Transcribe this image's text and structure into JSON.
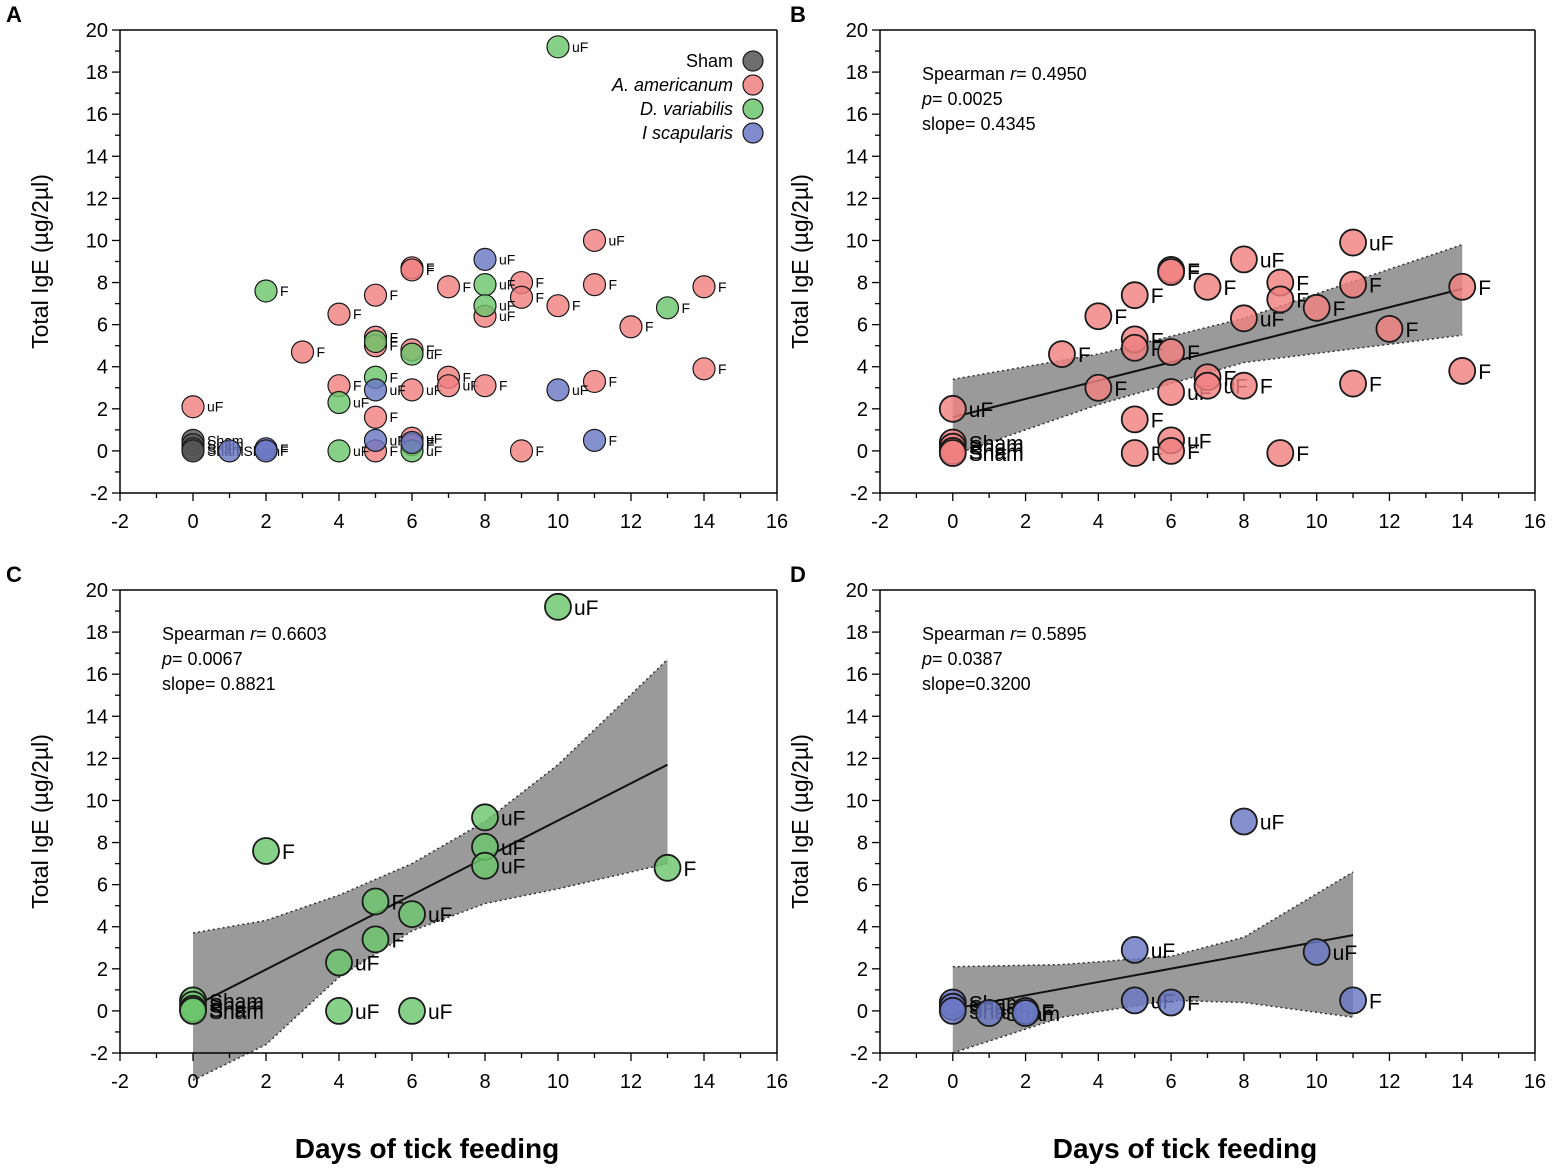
{
  "figure": {
    "xlabel": "Days of tick feeding",
    "ylabel": "Total IgE (µg/2µl)"
  },
  "colors": {
    "sham": "#555555",
    "americanum": "#f08080",
    "variabilis": "#6cc66c",
    "scapularis": "#6a78c4",
    "band": "#8c8c8c"
  },
  "chart_data": [
    {
      "panel": "A",
      "type": "scatter",
      "xlim": [
        -2,
        16
      ],
      "ylim": [
        -2,
        20
      ],
      "xticks": [
        -2,
        0,
        2,
        4,
        6,
        8,
        10,
        12,
        14,
        16
      ],
      "yticks": [
        -2,
        0,
        2,
        4,
        6,
        8,
        10,
        12,
        14,
        16,
        18,
        20
      ],
      "legend": {
        "position": "top-right",
        "entries": [
          {
            "label": "Sham",
            "group": "sham",
            "italic": false
          },
          {
            "label": "A. americanum",
            "group": "americanum",
            "italic": true
          },
          {
            "label": "D. variabilis",
            "group": "variabilis",
            "italic": true
          },
          {
            "label": "I scapularis",
            "group": "scapularis",
            "italic": true
          }
        ]
      },
      "points": [
        {
          "x": 0,
          "y": 0.5,
          "group": "sham",
          "label": "Sham"
        },
        {
          "x": 0,
          "y": 0.3,
          "group": "sham",
          "label": "Sham"
        },
        {
          "x": 0,
          "y": 0.1,
          "group": "sham",
          "label": "Sham"
        },
        {
          "x": 0,
          "y": 0.0,
          "group": "sham",
          "label": "Sham"
        },
        {
          "x": 0,
          "y": 2.1,
          "group": "americanum",
          "label": "uF"
        },
        {
          "x": 3,
          "y": 4.7,
          "group": "americanum",
          "label": "F"
        },
        {
          "x": 4,
          "y": 6.5,
          "group": "americanum",
          "label": "F"
        },
        {
          "x": 4,
          "y": 3.1,
          "group": "americanum",
          "label": "F"
        },
        {
          "x": 5,
          "y": 7.4,
          "group": "americanum",
          "label": "F"
        },
        {
          "x": 5,
          "y": 5.4,
          "group": "americanum",
          "label": "F"
        },
        {
          "x": 5,
          "y": 5.0,
          "group": "americanum",
          "label": "F"
        },
        {
          "x": 5,
          "y": 1.6,
          "group": "americanum",
          "label": "F"
        },
        {
          "x": 5,
          "y": 0.0,
          "group": "americanum",
          "label": "F"
        },
        {
          "x": 6,
          "y": 8.7,
          "group": "americanum",
          "label": "F"
        },
        {
          "x": 6,
          "y": 8.6,
          "group": "americanum",
          "label": "F"
        },
        {
          "x": 6,
          "y": 4.8,
          "group": "americanum",
          "label": "F"
        },
        {
          "x": 6,
          "y": 2.9,
          "group": "americanum",
          "label": "uF"
        },
        {
          "x": 6,
          "y": 0.6,
          "group": "americanum",
          "label": "uF"
        },
        {
          "x": 6,
          "y": 0.3,
          "group": "americanum",
          "label": "F"
        },
        {
          "x": 7,
          "y": 7.8,
          "group": "americanum",
          "label": "F"
        },
        {
          "x": 7,
          "y": 3.5,
          "group": "americanum",
          "label": "F"
        },
        {
          "x": 7,
          "y": 3.1,
          "group": "americanum",
          "label": "uF"
        },
        {
          "x": 8,
          "y": 6.4,
          "group": "americanum",
          "label": "uF"
        },
        {
          "x": 8,
          "y": 3.1,
          "group": "americanum",
          "label": "F"
        },
        {
          "x": 9,
          "y": 8.0,
          "group": "americanum",
          "label": "F"
        },
        {
          "x": 9,
          "y": 7.3,
          "group": "americanum",
          "label": "F"
        },
        {
          "x": 9,
          "y": 0.0,
          "group": "americanum",
          "label": "F"
        },
        {
          "x": 10,
          "y": 6.9,
          "group": "americanum",
          "label": "F"
        },
        {
          "x": 11,
          "y": 10.0,
          "group": "americanum",
          "label": "uF"
        },
        {
          "x": 11,
          "y": 7.9,
          "group": "americanum",
          "label": "F"
        },
        {
          "x": 11,
          "y": 3.3,
          "group": "americanum",
          "label": "F"
        },
        {
          "x": 12,
          "y": 5.9,
          "group": "americanum",
          "label": "F"
        },
        {
          "x": 14,
          "y": 7.8,
          "group": "americanum",
          "label": "F"
        },
        {
          "x": 14,
          "y": 3.9,
          "group": "americanum",
          "label": "F"
        },
        {
          "x": 2,
          "y": 7.6,
          "group": "variabilis",
          "label": "F"
        },
        {
          "x": 4,
          "y": 2.3,
          "group": "variabilis",
          "label": "uF"
        },
        {
          "x": 4,
          "y": 0.0,
          "group": "variabilis",
          "label": "uF"
        },
        {
          "x": 5,
          "y": 5.2,
          "group": "variabilis",
          "label": "F"
        },
        {
          "x": 5,
          "y": 3.5,
          "group": "variabilis",
          "label": "F"
        },
        {
          "x": 6,
          "y": 4.6,
          "group": "variabilis",
          "label": "uF"
        },
        {
          "x": 6,
          "y": 0.0,
          "group": "variabilis",
          "label": "uF"
        },
        {
          "x": 8,
          "y": 7.9,
          "group": "variabilis",
          "label": "uF"
        },
        {
          "x": 8,
          "y": 6.9,
          "group": "variabilis",
          "label": "uF"
        },
        {
          "x": 10,
          "y": 19.2,
          "group": "variabilis",
          "label": "uF"
        },
        {
          "x": 13,
          "y": 6.8,
          "group": "variabilis",
          "label": "F"
        },
        {
          "x": 1,
          "y": 0.0,
          "group": "scapularis",
          "label": "Sham"
        },
        {
          "x": 2,
          "y": 0.1,
          "group": "scapularis",
          "label": "F"
        },
        {
          "x": 2,
          "y": 0.0,
          "group": "scapularis",
          "label": "F"
        },
        {
          "x": 5,
          "y": 2.9,
          "group": "scapularis",
          "label": "uF"
        },
        {
          "x": 5,
          "y": 0.5,
          "group": "scapularis",
          "label": "uF"
        },
        {
          "x": 6,
          "y": 0.4,
          "group": "scapularis",
          "label": "F"
        },
        {
          "x": 8,
          "y": 9.1,
          "group": "scapularis",
          "label": "uF"
        },
        {
          "x": 10,
          "y": 2.9,
          "group": "scapularis",
          "label": "uF"
        },
        {
          "x": 11,
          "y": 0.5,
          "group": "scapularis",
          "label": "F"
        }
      ]
    },
    {
      "panel": "B",
      "type": "scatter",
      "group": "americanum",
      "xlim": [
        -2,
        16
      ],
      "ylim": [
        -2,
        20
      ],
      "xticks": [
        -2,
        0,
        2,
        4,
        6,
        8,
        10,
        12,
        14,
        16
      ],
      "yticks": [
        -2,
        0,
        2,
        4,
        6,
        8,
        10,
        12,
        14,
        16,
        18,
        20
      ],
      "stats": {
        "spearman_prefix": "Spearman ",
        "r_symbol": "r",
        "r_value": "= 0.4950",
        "p_symbol": "p",
        "p_value": "= 0.0025",
        "slope": "slope= 0.4345"
      },
      "fit": {
        "x": [
          0,
          14
        ],
        "y": [
          1.6,
          7.7
        ]
      },
      "band": {
        "x": [
          0,
          4,
          8,
          14
        ],
        "lower": [
          -0.2,
          2.2,
          4.2,
          5.5
        ],
        "upper": [
          3.4,
          4.6,
          6.3,
          9.8
        ]
      },
      "points": [
        {
          "x": 0,
          "y": 2.0,
          "label": "uF"
        },
        {
          "x": 0,
          "y": 0.4,
          "label": "Sham"
        },
        {
          "x": 0,
          "y": 0.2,
          "label": "Sham"
        },
        {
          "x": 0,
          "y": 0.0,
          "label": "Sham"
        },
        {
          "x": 0,
          "y": -0.1,
          "label": "Sham"
        },
        {
          "x": 3,
          "y": 4.6,
          "label": "F"
        },
        {
          "x": 4,
          "y": 6.4,
          "label": "F"
        },
        {
          "x": 4,
          "y": 3.0,
          "label": "F"
        },
        {
          "x": 5,
          "y": 7.4,
          "label": "F"
        },
        {
          "x": 5,
          "y": 5.3,
          "label": "F"
        },
        {
          "x": 5,
          "y": 4.9,
          "label": "F"
        },
        {
          "x": 5,
          "y": 1.5,
          "label": "F"
        },
        {
          "x": 5,
          "y": -0.1,
          "label": "F"
        },
        {
          "x": 6,
          "y": 8.6,
          "label": "F"
        },
        {
          "x": 6,
          "y": 8.5,
          "label": "F"
        },
        {
          "x": 6,
          "y": 4.7,
          "label": "F"
        },
        {
          "x": 6,
          "y": 2.8,
          "label": "uF"
        },
        {
          "x": 6,
          "y": 0.5,
          "label": "uF"
        },
        {
          "x": 6,
          "y": 0.0,
          "label": "F"
        },
        {
          "x": 7,
          "y": 7.8,
          "label": "F"
        },
        {
          "x": 7,
          "y": 3.5,
          "label": "F"
        },
        {
          "x": 7,
          "y": 3.1,
          "label": "uF"
        },
        {
          "x": 8,
          "y": 9.1,
          "label": "uF"
        },
        {
          "x": 8,
          "y": 6.3,
          "label": "uF"
        },
        {
          "x": 8,
          "y": 3.1,
          "label": "F"
        },
        {
          "x": 9,
          "y": 8.0,
          "label": "F"
        },
        {
          "x": 9,
          "y": 7.2,
          "label": "F"
        },
        {
          "x": 9,
          "y": -0.1,
          "label": "F"
        },
        {
          "x": 10,
          "y": 6.8,
          "label": "F"
        },
        {
          "x": 11,
          "y": 9.9,
          "label": "uF"
        },
        {
          "x": 11,
          "y": 7.9,
          "label": "F"
        },
        {
          "x": 11,
          "y": 3.2,
          "label": "F"
        },
        {
          "x": 12,
          "y": 5.8,
          "label": "F"
        },
        {
          "x": 14,
          "y": 7.8,
          "label": "F"
        },
        {
          "x": 14,
          "y": 3.8,
          "label": "F"
        }
      ]
    },
    {
      "panel": "C",
      "type": "scatter",
      "group": "variabilis",
      "xlim": [
        -2,
        16
      ],
      "ylim": [
        -2,
        20
      ],
      "xticks": [
        -2,
        0,
        2,
        4,
        6,
        8,
        10,
        12,
        14,
        16
      ],
      "yticks": [
        -2,
        0,
        2,
        4,
        6,
        8,
        10,
        12,
        14,
        16,
        18,
        20
      ],
      "stats": {
        "spearman_prefix": "Spearman ",
        "r_symbol": "r",
        "r_value": "= 0.6603",
        "p_symbol": "p",
        "p_value": "= 0.0067",
        "slope": "slope= 0.8821"
      },
      "fit": {
        "x": [
          0,
          13
        ],
        "y": [
          0.2,
          11.7
        ]
      },
      "band": {
        "x": [
          0,
          2,
          4,
          6,
          8,
          10,
          13
        ],
        "lower": [
          -3.3,
          -1.6,
          1.6,
          3.8,
          5.1,
          5.8,
          7.0
        ],
        "upper": [
          3.7,
          4.3,
          5.5,
          7.0,
          9.0,
          11.7,
          16.7
        ]
      },
      "points": [
        {
          "x": 0,
          "y": 0.5,
          "label": "Sham"
        },
        {
          "x": 0,
          "y": 0.3,
          "label": "Sham"
        },
        {
          "x": 0,
          "y": 0.1,
          "label": "Sham"
        },
        {
          "x": 0,
          "y": 0.0,
          "label": "Sham"
        },
        {
          "x": 2,
          "y": 7.6,
          "label": "F"
        },
        {
          "x": 4,
          "y": 2.3,
          "label": "uF"
        },
        {
          "x": 4,
          "y": 0.0,
          "label": "uF"
        },
        {
          "x": 5,
          "y": 5.2,
          "label": "F"
        },
        {
          "x": 5,
          "y": 3.4,
          "label": "F"
        },
        {
          "x": 6,
          "y": 4.6,
          "label": "uF"
        },
        {
          "x": 6,
          "y": 0.0,
          "label": "uF"
        },
        {
          "x": 8,
          "y": 9.2,
          "label": "uF"
        },
        {
          "x": 8,
          "y": 7.8,
          "label": "uF"
        },
        {
          "x": 8,
          "y": 6.9,
          "label": "uF"
        },
        {
          "x": 10,
          "y": 19.2,
          "label": "uF"
        },
        {
          "x": 13,
          "y": 6.8,
          "label": "F"
        }
      ]
    },
    {
      "panel": "D",
      "type": "scatter",
      "group": "scapularis",
      "xlim": [
        -2,
        16
      ],
      "ylim": [
        -2,
        20
      ],
      "xticks": [
        -2,
        0,
        2,
        4,
        6,
        8,
        10,
        12,
        14,
        16
      ],
      "yticks": [
        -2,
        0,
        2,
        4,
        6,
        8,
        10,
        12,
        14,
        16,
        18,
        20
      ],
      "stats": {
        "spearman_prefix": "Spearman ",
        "r_symbol": "r",
        "r_value": "= 0.5895",
        "p_symbol": "p",
        "p_value": "= 0.0387",
        "slope": "slope=0.3200"
      },
      "fit": {
        "x": [
          0,
          11
        ],
        "y": [
          0.1,
          3.6
        ]
      },
      "band": {
        "x": [
          0,
          3,
          6,
          8,
          11
        ],
        "lower": [
          -2.0,
          -0.3,
          0.5,
          0.4,
          -0.3
        ],
        "upper": [
          2.1,
          2.2,
          2.6,
          3.5,
          6.6
        ]
      },
      "points": [
        {
          "x": 0,
          "y": 0.4,
          "label": "Sham"
        },
        {
          "x": 0,
          "y": 0.2,
          "label": "Sham"
        },
        {
          "x": 0,
          "y": 0.0,
          "label": "Sham"
        },
        {
          "x": 1,
          "y": -0.1,
          "label": "Sham"
        },
        {
          "x": 2,
          "y": 0.0,
          "label": "F"
        },
        {
          "x": 2,
          "y": -0.1,
          "label": "F"
        },
        {
          "x": 5,
          "y": 2.9,
          "label": "uF"
        },
        {
          "x": 5,
          "y": 0.5,
          "label": "uF"
        },
        {
          "x": 6,
          "y": 0.4,
          "label": "F"
        },
        {
          "x": 8,
          "y": 9.0,
          "label": "uF"
        },
        {
          "x": 10,
          "y": 2.8,
          "label": "uF"
        },
        {
          "x": 11,
          "y": 0.5,
          "label": "F"
        }
      ]
    }
  ]
}
